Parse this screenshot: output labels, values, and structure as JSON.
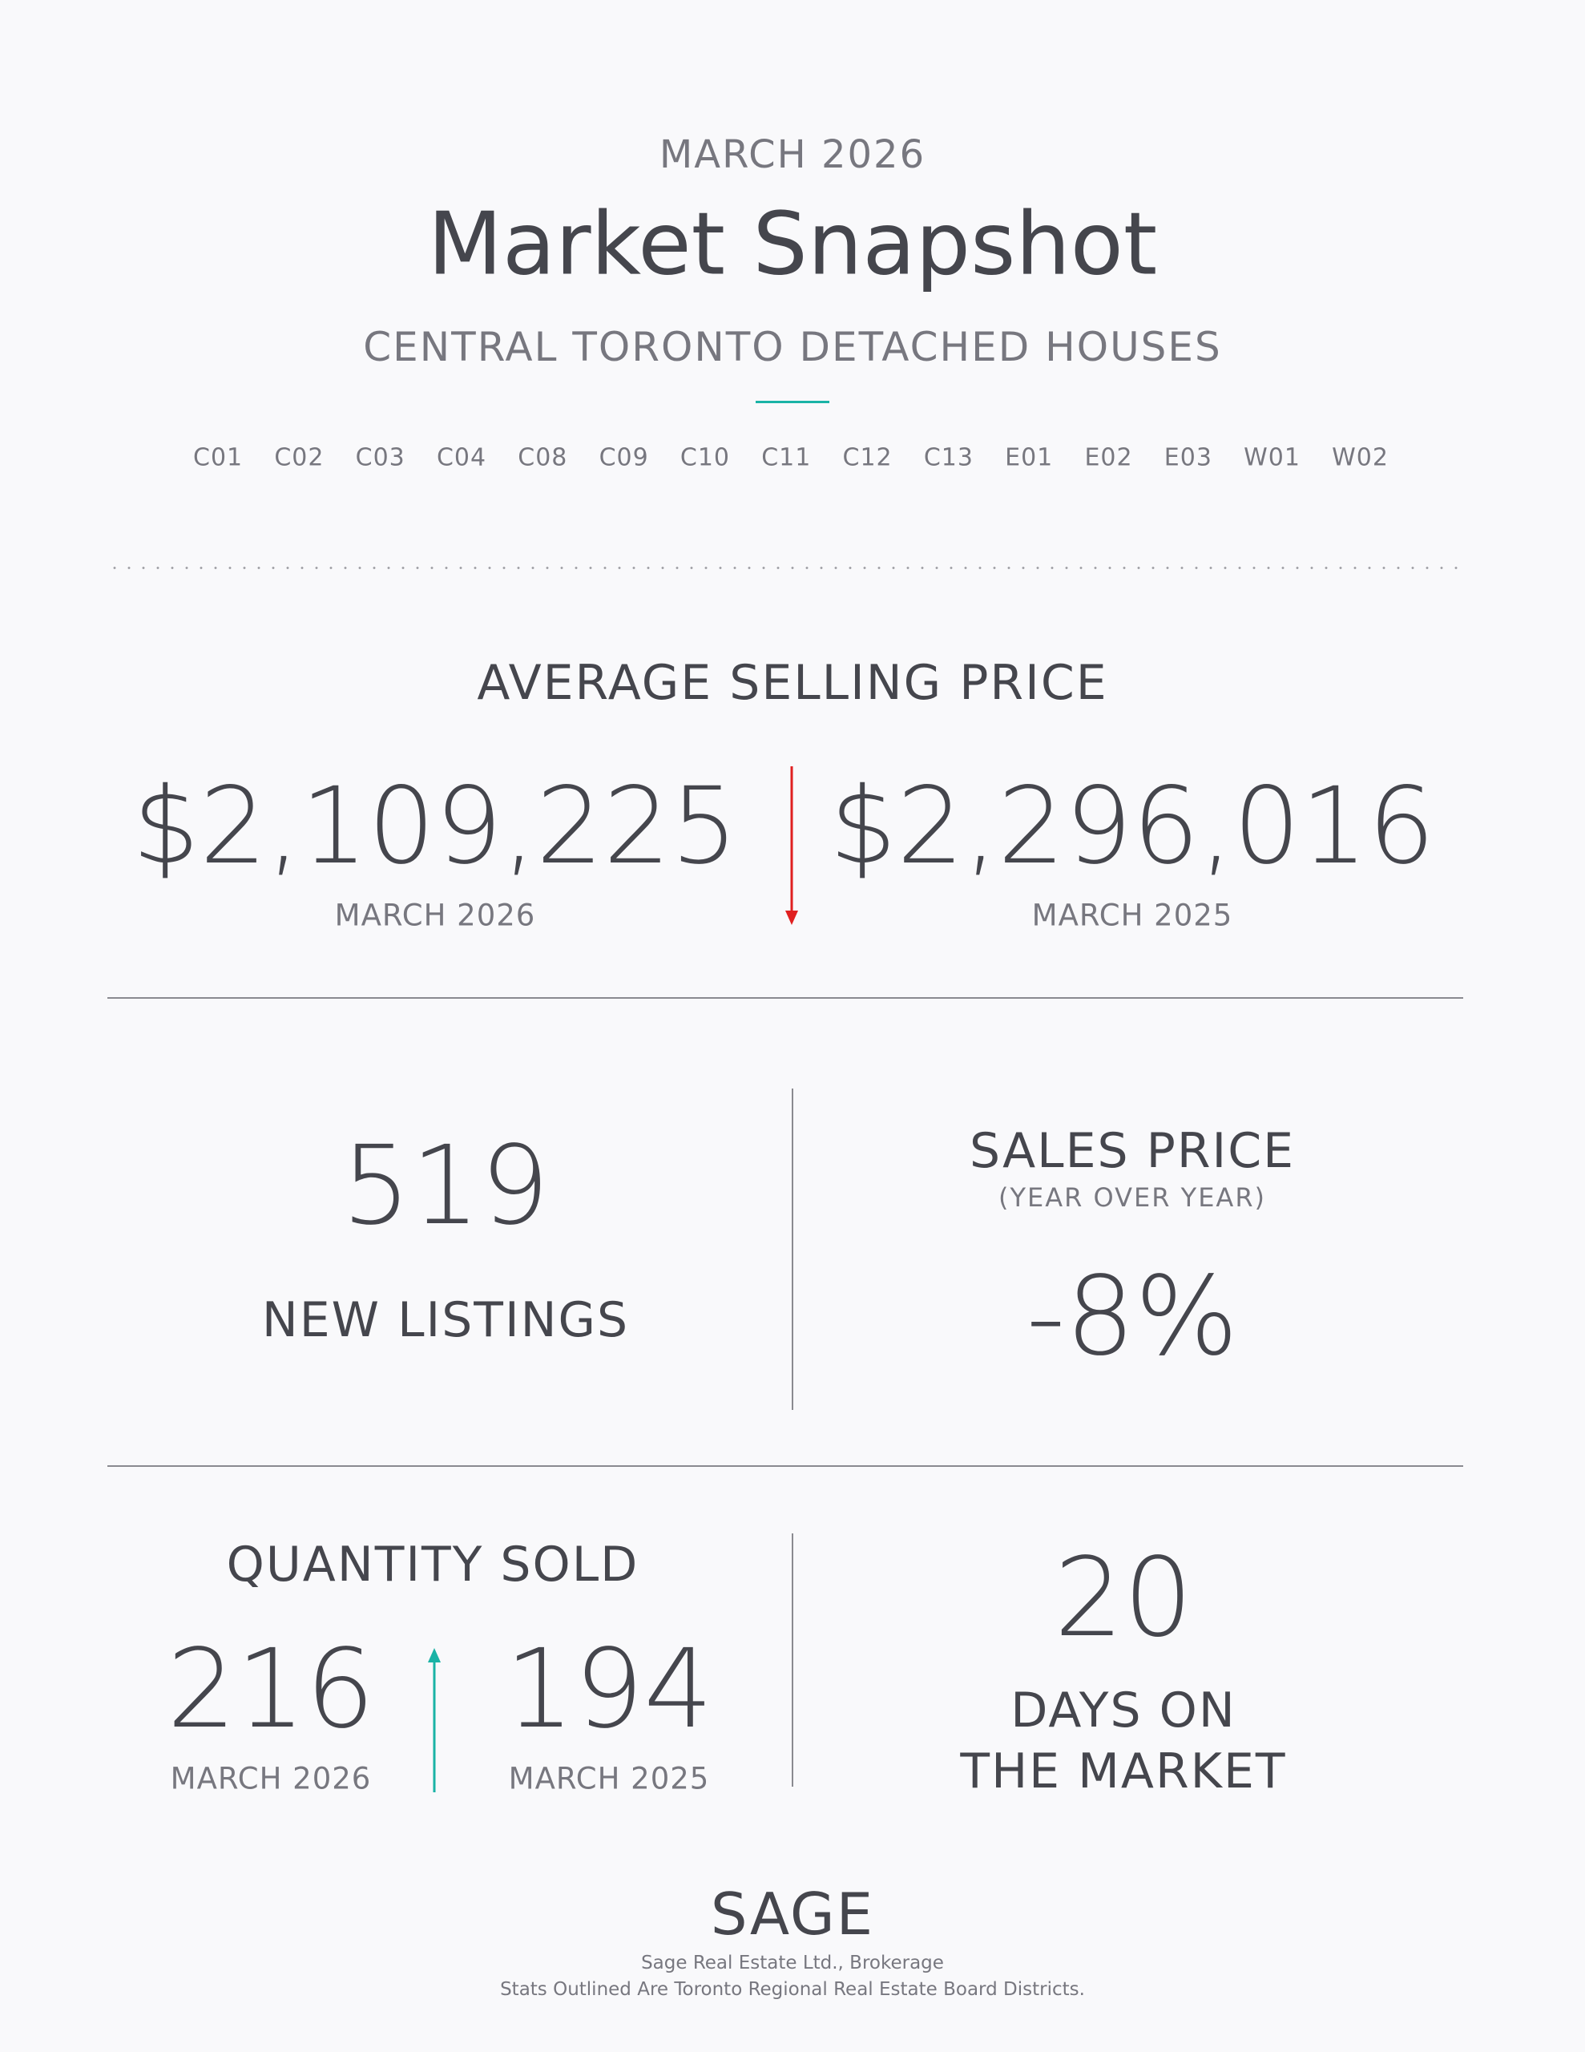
{
  "header": {
    "period": "MARCH 2026",
    "title": "Market Snapshot",
    "subtitle": "CENTRAL TORONTO DETACHED HOUSES",
    "districts": [
      "C01",
      "C02",
      "C03",
      "C04",
      "C08",
      "C09",
      "C10",
      "C11",
      "C12",
      "C13",
      "E01",
      "E02",
      "E03",
      "W01",
      "W02"
    ],
    "accent_color": "#1ab3a6"
  },
  "average_selling_price": {
    "heading": "AVERAGE SELLING PRICE",
    "current": {
      "value": "$2,109,225",
      "label": "MARCH 2026"
    },
    "previous": {
      "value": "$2,296,016",
      "label": "MARCH 2025"
    },
    "trend": "down",
    "trend_icon": "arrow-down-icon",
    "trend_color": "#e02020"
  },
  "new_listings": {
    "value": "519",
    "label": "NEW LISTINGS"
  },
  "sales_price": {
    "heading": "SALES PRICE",
    "subheading": "(YEAR OVER YEAR)",
    "value": "-8%"
  },
  "quantity_sold": {
    "heading": "QUANTITY SOLD",
    "current": {
      "value": "216",
      "label": "MARCH 2026"
    },
    "previous": {
      "value": "194",
      "label": "MARCH 2025"
    },
    "trend": "up",
    "trend_icon": "arrow-up-icon",
    "trend_color": "#1ab3a6"
  },
  "days_on_market": {
    "value": "20",
    "label_line1": "DAYS ON",
    "label_line2": "THE MARKET"
  },
  "footer": {
    "logo": "SAGE",
    "company": "Sage Real Estate Ltd., Brokerage",
    "note": "Stats Outlined Are Toronto Regional Real Estate Board Districts."
  }
}
